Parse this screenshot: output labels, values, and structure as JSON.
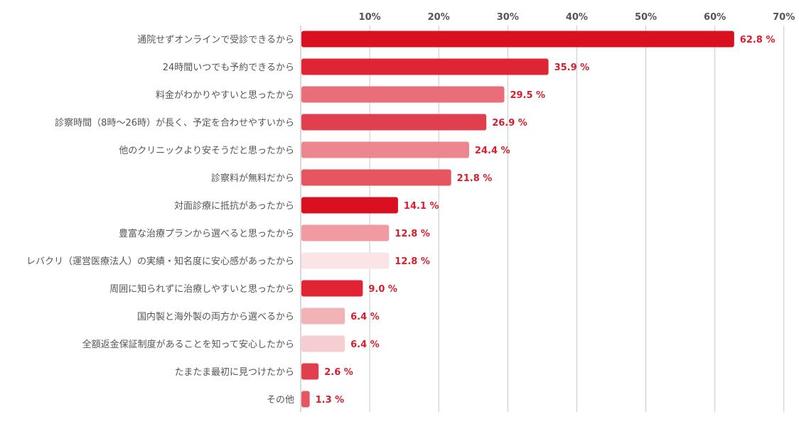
{
  "chart_data": {
    "type": "bar",
    "orientation": "horizontal",
    "categories": [
      "通院せずオンラインで受診できるから",
      "24時間いつでも予約できるから",
      "料金がわかりやすいと思ったから",
      "診察時間（8時〜26時）が長く、予定を合わせやすいから",
      "他のクリニックより安そうだと思ったから",
      "診察料が無料だから",
      "対面診療に抵抗があったから",
      "豊富な治療プランから選べると思ったから",
      "レバクリ（運営医療法人）の実績・知名度に安心感があったから",
      "周囲に知られずに治療しやすいと思ったから",
      "国内製と海外製の両方から選べるから",
      "全額返金保証制度があることを知って安心したから",
      "たまたま最初に見つけたから",
      "その他"
    ],
    "values": [
      62.8,
      35.9,
      29.5,
      26.9,
      24.4,
      21.8,
      14.1,
      12.8,
      12.8,
      9.0,
      6.4,
      6.4,
      2.6,
      1.3
    ],
    "value_labels": [
      "62.8 %",
      "35.9 %",
      "29.5 %",
      "26.9 %",
      "24.4 %",
      "21.8 %",
      "14.1 %",
      "12.8 %",
      "12.8 %",
      "9.0 %",
      "6.4 %",
      "6.4 %",
      "2.6 %",
      "1.3 %"
    ],
    "bar_colors": [
      "#d8101f",
      "#e02434",
      "#ea6e79",
      "#e0404d",
      "#ed868e",
      "#e55661",
      "#d8101f",
      "#f09aa1",
      "#fbe4e6",
      "#e02434",
      "#f2b3b7",
      "#f6cdd1",
      "#e0404d",
      "#e55661"
    ],
    "xlim": [
      0,
      70
    ],
    "ticks": [
      10,
      20,
      30,
      40,
      50,
      60,
      70
    ],
    "tick_labels": [
      "10%",
      "20%",
      "30%",
      "40%",
      "50%",
      "60%",
      "70%"
    ],
    "grid": true,
    "title": "",
    "xlabel": "",
    "ylabel": "",
    "value_label_color": "#d81e2c"
  }
}
